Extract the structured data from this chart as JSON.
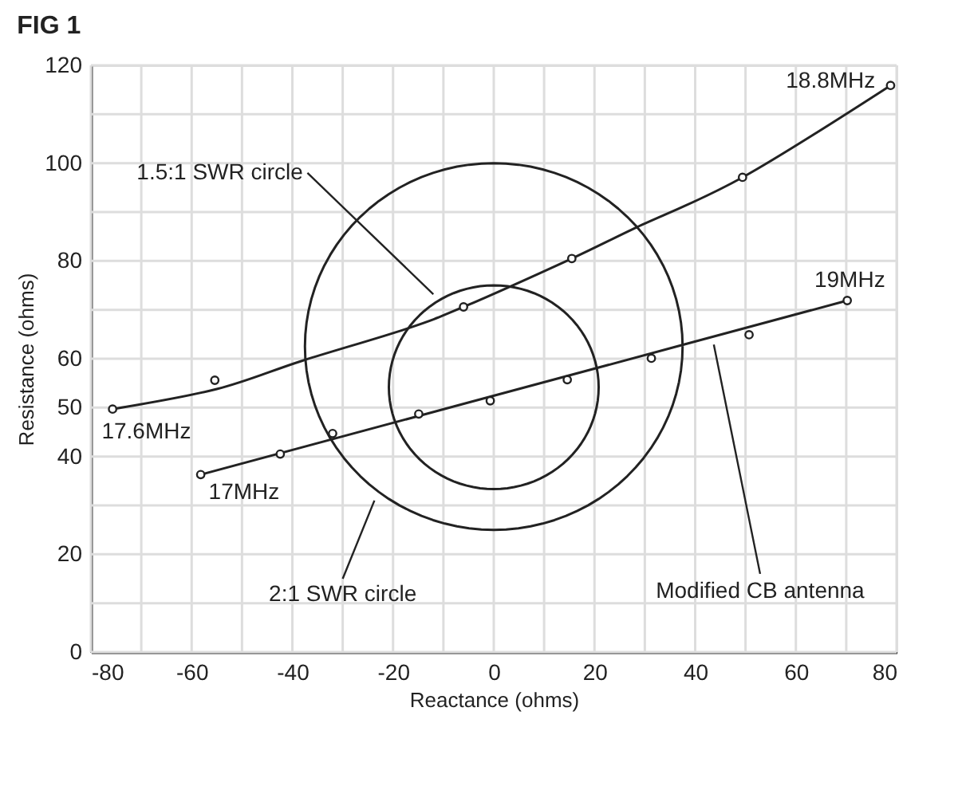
{
  "chart_data": {
    "type": "scatter",
    "title": "FIG 1",
    "xlabel": "Reactance (ohms)",
    "ylabel": "Resistance (ohms)",
    "xlim": [
      -80,
      80
    ],
    "ylim": [
      0,
      120
    ],
    "xticks": [
      -80,
      {
        "value": -70,
        "label": null
      },
      -60,
      {
        "value": -50,
        "label": null
      },
      -40,
      {
        "value": -30,
        "label": null
      },
      -20,
      {
        "value": -10,
        "label": null
      },
      0,
      {
        "value": 10,
        "label": null
      },
      20,
      {
        "value": 30,
        "label": null
      },
      40,
      {
        "value": 50,
        "label": null
      },
      60,
      {
        "value": 70,
        "label": null
      },
      80
    ],
    "yticks": [
      0,
      {
        "value": 10,
        "label": null
      },
      20,
      {
        "value": 30,
        "label": null
      },
      40,
      50,
      60,
      {
        "value": 70,
        "label": null
      },
      80,
      {
        "value": 90,
        "label": null
      },
      100,
      {
        "value": 110,
        "label": null
      },
      120
    ],
    "grid": true,
    "series": [
      {
        "type": "line",
        "color": "#222222",
        "x": [
          -75.7,
          -55,
          -38,
          -17.4,
          -6,
          15.5,
          27.8,
          49.4,
          78.8
        ],
        "values": [
          49.7,
          53.8,
          59.6,
          66.1,
          70.6,
          80.5,
          86.6,
          97.1,
          115.9
        ]
      },
      {
        "type": "line",
        "color": "#222222",
        "x": [
          -58.2,
          36.7,
          70.2
        ],
        "values": [
          36.3,
          62.6,
          71.9
        ]
      },
      {
        "type": "scatter",
        "marker": "circle",
        "color": "#222222",
        "x": [
          -75.7,
          -55.4,
          -6,
          15.5,
          49.4,
          78.8
        ],
        "values": [
          49.7,
          55.6,
          70.6,
          80.5,
          97.1,
          115.9
        ]
      },
      {
        "type": "scatter",
        "marker": "circle",
        "color": "#222222",
        "x": [
          -58.2,
          -42.4,
          -32,
          -14.9,
          -0.7,
          14.6,
          31.3,
          50.7,
          70.2
        ],
        "values": [
          36.3,
          40.5,
          44.7,
          48.7,
          51.4,
          55.7,
          60.1,
          64.9,
          71.9
        ]
      }
    ],
    "annotations": [
      {
        "text": "17.6MHz",
        "x": -75.7,
        "y": 49.7
      },
      {
        "text": "17MHz",
        "x": -58.2,
        "y": 36.3
      },
      {
        "text": "18.8MHz",
        "x": 78.8,
        "y": 115.9
      },
      {
        "text": "19MHz",
        "x": 70.2,
        "y": 71.9
      },
      "1.5:1 SWR circle",
      "2:1 SWR circle",
      "Modified CB antenna"
    ]
  }
}
